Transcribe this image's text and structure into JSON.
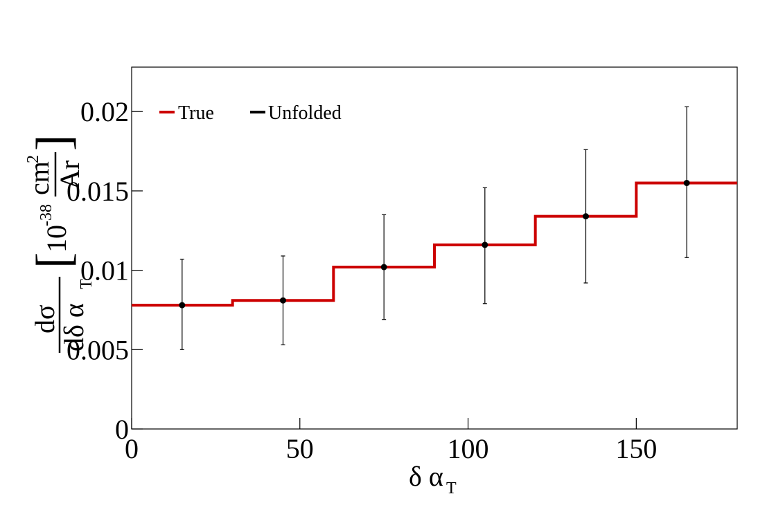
{
  "chart_data": {
    "type": "line",
    "xlabel": {
      "main": "δ α",
      "sub": "T"
    },
    "ylabel": {
      "numerator": "dσ",
      "denominator": "dδ α",
      "denominator_sub": "T",
      "unit_prefix": "10",
      "unit_exp": "-38",
      "unit_num": "cm",
      "unit_num_exp": "2",
      "unit_den": "Ar"
    },
    "xlim": [
      0,
      180
    ],
    "ylim": [
      0,
      0.0228
    ],
    "xticks": [
      {
        "value": 0,
        "label": "0"
      },
      {
        "value": 50,
        "label": "50"
      },
      {
        "value": 100,
        "label": "100"
      },
      {
        "value": 150,
        "label": "150"
      }
    ],
    "yticks": [
      {
        "value": 0,
        "label": "0"
      },
      {
        "value": 0.005,
        "label": "0.005"
      },
      {
        "value": 0.01,
        "label": "0.01"
      },
      {
        "value": 0.015,
        "label": "0.015"
      },
      {
        "value": 0.02,
        "label": "0.02"
      }
    ],
    "legend_position": "top-left",
    "grid": false,
    "series": [
      {
        "name": "True",
        "kind": "step",
        "color": "#cc0000",
        "bin_edges": [
          0,
          30,
          60,
          90,
          120,
          150,
          180
        ],
        "values": [
          0.0078,
          0.0081,
          0.0102,
          0.0116,
          0.0134,
          0.0155
        ]
      },
      {
        "name": "Unfolded",
        "kind": "points-errorbars",
        "color": "#000000",
        "x": [
          15,
          45,
          75,
          105,
          135,
          165
        ],
        "y": [
          0.0078,
          0.0081,
          0.0102,
          0.0116,
          0.0134,
          0.0155
        ],
        "err_low": [
          0.0028,
          0.0028,
          0.0033,
          0.0037,
          0.0042,
          0.0047
        ],
        "err_high": [
          0.0029,
          0.0028,
          0.0033,
          0.0036,
          0.0042,
          0.0048
        ]
      }
    ]
  }
}
